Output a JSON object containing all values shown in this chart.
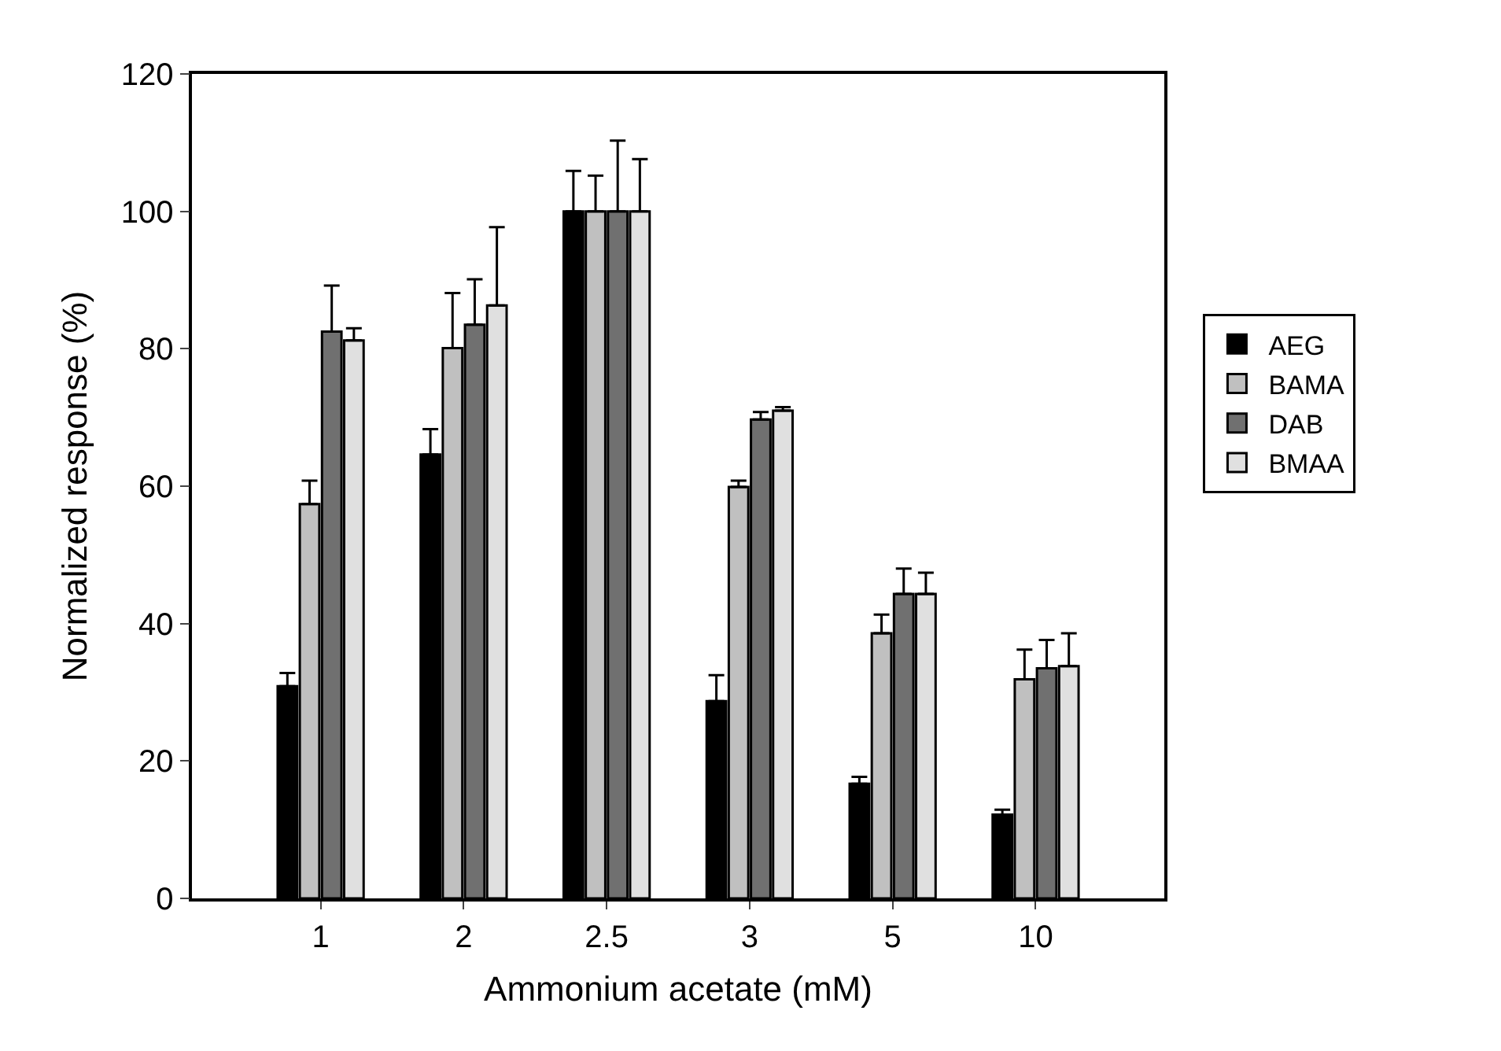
{
  "chart_data": {
    "type": "bar",
    "xlabel": "Ammonium acetate (mM)",
    "ylabel": "Normalized response (%)",
    "categories": [
      "1",
      "2",
      "2.5",
      "3",
      "5",
      "10"
    ],
    "series": [
      {
        "name": "AEG",
        "color": "#000000",
        "values": [
          30.9,
          64.6,
          100,
          28.7,
          16.7,
          12.2
        ],
        "errors": [
          [
            30.9,
            32.8
          ],
          [
            64.6,
            68.3
          ],
          [
            100,
            105.9
          ],
          [
            28.7,
            32.5
          ],
          [
            16.7,
            17.7
          ],
          [
            12.2,
            12.9
          ]
        ]
      },
      {
        "name": "BAMA",
        "color": "#c0c0c0",
        "values": [
          57.4,
          80.1,
          100,
          59.9,
          38.6,
          31.9
        ],
        "errors": [
          [
            57.4,
            60.8
          ],
          [
            80.1,
            88.1
          ],
          [
            100,
            105.2
          ],
          [
            59.9,
            60.8
          ],
          [
            38.6,
            41.3
          ],
          [
            31.9,
            36.2
          ]
        ]
      },
      {
        "name": "DAB",
        "color": "#707070",
        "values": [
          82.5,
          83.5,
          100,
          69.7,
          44.3,
          33.5
        ],
        "errors": [
          [
            82.5,
            89.2
          ],
          [
            83.5,
            90.1
          ],
          [
            100,
            110.3
          ],
          [
            69.7,
            70.8
          ],
          [
            44.3,
            48.0
          ],
          [
            33.5,
            37.6
          ]
        ]
      },
      {
        "name": "BMAA",
        "color": "#e0e0e0",
        "values": [
          81.2,
          86.3,
          100,
          71.0,
          44.3,
          33.8
        ],
        "errors": [
          [
            81.2,
            83.0
          ],
          [
            86.3,
            97.7
          ],
          [
            100,
            107.6
          ],
          [
            71.0,
            71.5
          ],
          [
            44.3,
            47.4
          ],
          [
            33.8,
            38.6
          ]
        ]
      }
    ],
    "ylim": [
      0,
      120
    ],
    "yticks": [
      0,
      20,
      40,
      60,
      80,
      100,
      120
    ],
    "legend": "right"
  }
}
